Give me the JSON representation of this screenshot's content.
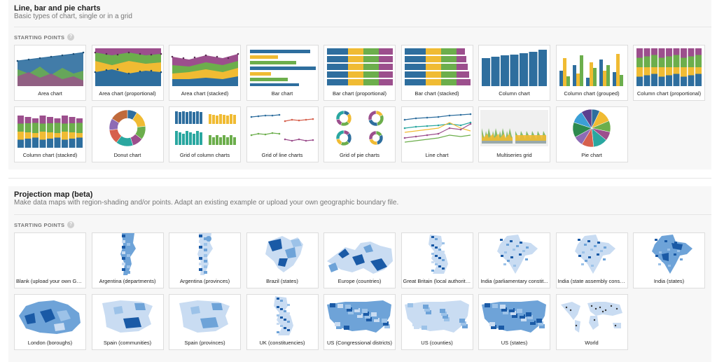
{
  "colors": {
    "blue": "#2e6e9e",
    "yellow": "#f0bb33",
    "green": "#6cae4c",
    "purple": "#9c4f8d",
    "teal": "#2aa7a0",
    "red": "#d6604d",
    "map_dark": "#1a5aa6",
    "map_mid": "#6ea3d8",
    "map_light": "#c9dcf2"
  },
  "charts_section": {
    "title": "Line, bar and pie charts",
    "description": "Basic types of chart, single or in a grid",
    "starting_points_label": "STARTING POINTS",
    "help_icon": "question-icon",
    "tiles": [
      {
        "label": "Area chart",
        "kind": "area"
      },
      {
        "label": "Area chart (proportional)",
        "kind": "area-prop"
      },
      {
        "label": "Area chart (stacked)",
        "kind": "area-stacked"
      },
      {
        "label": "Bar chart",
        "kind": "bar"
      },
      {
        "label": "Bar chart (proportional)",
        "kind": "bar-prop"
      },
      {
        "label": "Bar chart (stacked)",
        "kind": "bar-stacked"
      },
      {
        "label": "Column chart",
        "kind": "column"
      },
      {
        "label": "Column chart (grouped)",
        "kind": "column-grouped"
      },
      {
        "label": "Column chart (proportional)",
        "kind": "column-prop"
      },
      {
        "label": "Column chart (stacked)",
        "kind": "column-stacked"
      },
      {
        "label": "Donut chart",
        "kind": "donut"
      },
      {
        "label": "Grid of column charts",
        "kind": "grid-columns"
      },
      {
        "label": "Grid of line charts",
        "kind": "grid-lines"
      },
      {
        "label": "Grid of pie charts",
        "kind": "grid-pies"
      },
      {
        "label": "Line chart",
        "kind": "line"
      },
      {
        "label": "Multiseries grid",
        "kind": "multiseries"
      },
      {
        "label": "Pie chart",
        "kind": "pie"
      }
    ]
  },
  "maps_section": {
    "title": "Projection map (beta)",
    "description": "Make data maps with region-shading and/or points. Adapt an existing example or upload your own geographic boundary file.",
    "starting_points_label": "STARTING POINTS",
    "help_icon": "question-icon",
    "tiles": [
      {
        "label": "Blank (upload your own Geo...",
        "kind": "blank"
      },
      {
        "label": "Argentina (departments)",
        "kind": "map-tall"
      },
      {
        "label": "Argentina (provinces)",
        "kind": "map-tall-light"
      },
      {
        "label": "Brazil (states)",
        "kind": "map-blob"
      },
      {
        "label": "Europe (countries)",
        "kind": "map-europe"
      },
      {
        "label": "Great Britain (local authorities)",
        "kind": "map-gb"
      },
      {
        "label": "India (parliamentary constit...",
        "kind": "map-india"
      },
      {
        "label": "India (state assembly constit...",
        "kind": "map-india-light"
      },
      {
        "label": "India (states)",
        "kind": "map-india-dark"
      },
      {
        "label": "London (boroughs)",
        "kind": "map-london"
      },
      {
        "label": "Spain (communities)",
        "kind": "map-spain"
      },
      {
        "label": "Spain (provinces)",
        "kind": "map-spain-light"
      },
      {
        "label": "UK (constituencies)",
        "kind": "map-gb"
      },
      {
        "label": "US (Congressional districts)",
        "kind": "map-us"
      },
      {
        "label": "US (counties)",
        "kind": "map-us-light"
      },
      {
        "label": "US (states)",
        "kind": "map-us-dark"
      },
      {
        "label": "World",
        "kind": "map-world"
      }
    ]
  }
}
